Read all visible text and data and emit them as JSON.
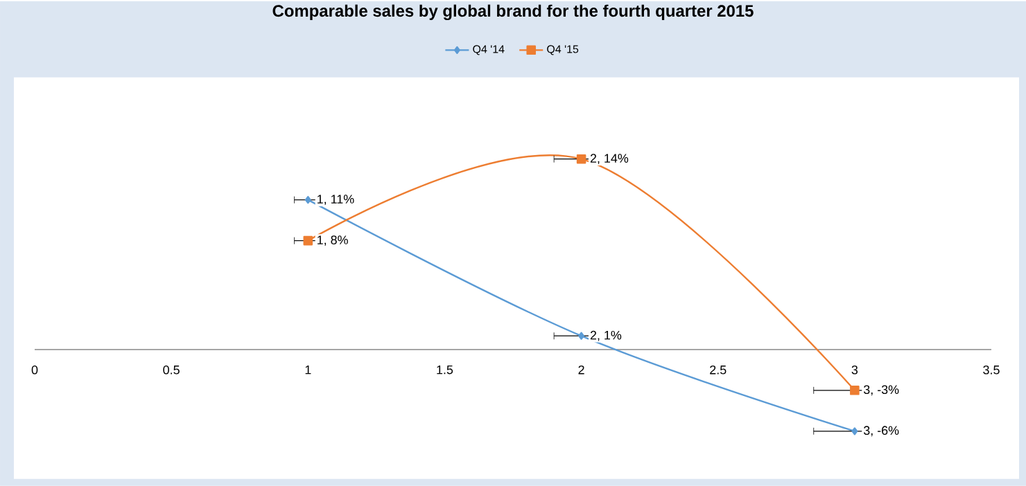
{
  "chart_data": {
    "type": "line",
    "title": "Comparable sales by global brand for the fourth quarter 2015",
    "legend": "top",
    "grid": false,
    "line_style": "solid",
    "xlim": [
      0,
      3.5
    ],
    "xticks": [
      0,
      0.5,
      1,
      1.5,
      2,
      2.5,
      3,
      3.5
    ],
    "tick_labels": "x",
    "series": [
      {
        "name": "Q4 '14",
        "color": "#5b9bd5",
        "marker": "diamond",
        "x": [
          1,
          2,
          3
        ],
        "values": [
          11,
          1,
          -6
        ],
        "xerrors": [
          0.05,
          0.1,
          0.15
        ],
        "value_labels": [
          "1, 11%",
          "2, 1%",
          "3, -6%"
        ]
      },
      {
        "name": "Q4 '15",
        "color": "#ed7d31",
        "marker": "square",
        "x": [
          1,
          2,
          3
        ],
        "values": [
          8,
          14,
          -3
        ],
        "xerrors": [
          0.05,
          0.1,
          0.15
        ],
        "value_labels": [
          "1, 8%",
          "2, 14%",
          "3, -3%"
        ]
      }
    ]
  }
}
